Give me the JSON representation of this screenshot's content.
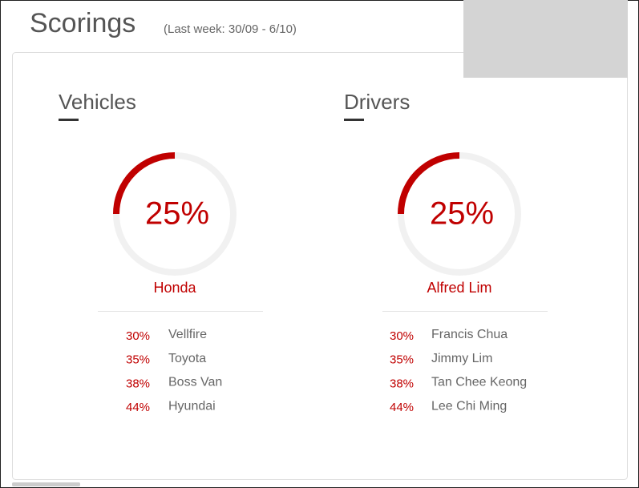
{
  "header": {
    "title": "Scorings",
    "subtitle": "(Last week: 30/09 - 6/10)"
  },
  "panels": [
    {
      "title": "Vehicles",
      "score": 25,
      "score_label": "25%",
      "top": "Honda",
      "items": [
        {
          "pct": "30%",
          "name": "Vellfire"
        },
        {
          "pct": "35%",
          "name": "Toyota"
        },
        {
          "pct": "38%",
          "name": "Boss Van"
        },
        {
          "pct": "44%",
          "name": "Hyundai"
        }
      ]
    },
    {
      "title": "Drivers",
      "score": 25,
      "score_label": "25%",
      "top": "Alfred Lim",
      "items": [
        {
          "pct": "30%",
          "name": "Francis Chua"
        },
        {
          "pct": "35%",
          "name": "Jimmy Lim"
        },
        {
          "pct": "38%",
          "name": "Tan Chee Keong"
        },
        {
          "pct": "44%",
          "name": "Lee Chi Ming"
        }
      ]
    }
  ]
}
